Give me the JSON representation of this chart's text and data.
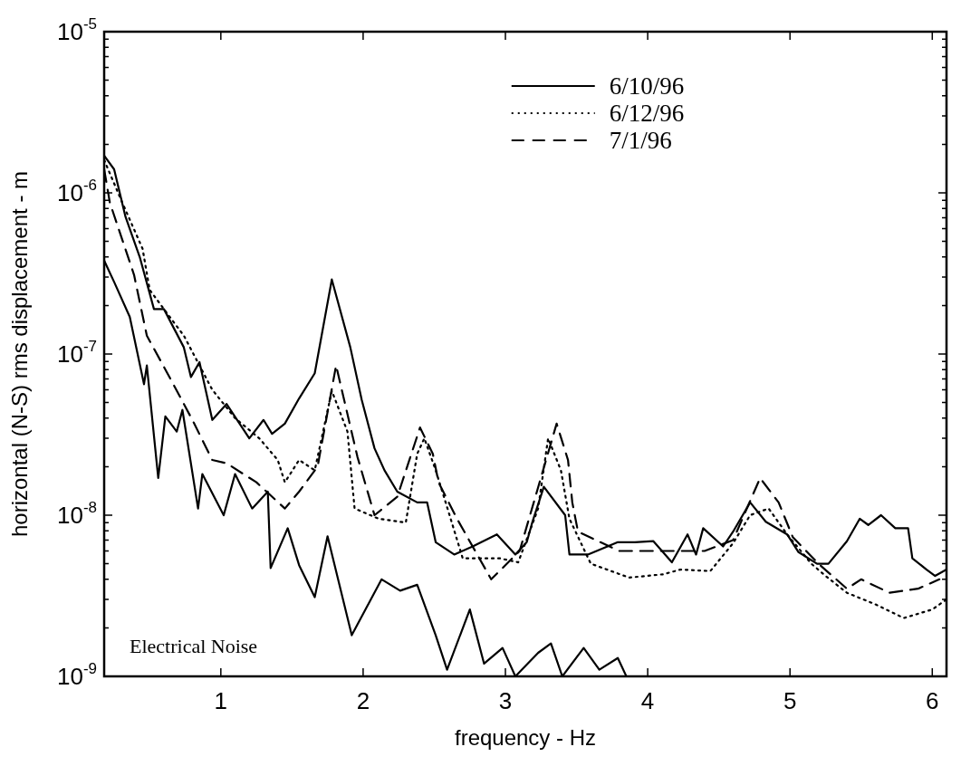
{
  "chart_data": {
    "type": "line",
    "xlabel": "frequency - Hz",
    "ylabel": "horizontal (N-S) rms displacement - m",
    "log": "y",
    "legend": "top",
    "xlim": [
      0.18,
      6.1
    ],
    "ylim": [
      1e-09,
      1e-05
    ],
    "xticks": [
      1,
      2,
      3,
      4,
      5,
      6
    ],
    "yticks": [
      {
        "value": 1e-09,
        "label": "10$^{-9}$"
      },
      {
        "value": 2e-09,
        "label": null
      },
      {
        "value": 3e-09,
        "label": null
      },
      {
        "value": 4e-09,
        "label": null
      },
      {
        "value": 5e-09,
        "label": null
      },
      {
        "value": 6e-09,
        "label": null
      },
      {
        "value": 7e-09,
        "label": null
      },
      {
        "value": 8e-09,
        "label": null
      },
      {
        "value": 9e-09,
        "label": null
      },
      {
        "value": 1e-08,
        "label": "10$^{-8}$"
      },
      {
        "value": 2e-08,
        "label": null
      },
      {
        "value": 3e-08,
        "label": null
      },
      {
        "value": 4e-08,
        "label": null
      },
      {
        "value": 5e-08,
        "label": null
      },
      {
        "value": 6e-08,
        "label": null
      },
      {
        "value": 7e-08,
        "label": null
      },
      {
        "value": 8e-08,
        "label": null
      },
      {
        "value": 9e-08,
        "label": null
      },
      {
        "value": 1e-07,
        "label": "10$^{-7}$"
      },
      {
        "value": 2e-07,
        "label": null
      },
      {
        "value": 3e-07,
        "label": null
      },
      {
        "value": 4e-07,
        "label": null
      },
      {
        "value": 5e-07,
        "label": null
      },
      {
        "value": 6e-07,
        "label": null
      },
      {
        "value": 7e-07,
        "label": null
      },
      {
        "value": 8e-07,
        "label": null
      },
      {
        "value": 9e-07,
        "label": null
      },
      {
        "value": 1e-06,
        "label": "10$^{-6}$"
      },
      {
        "value": 2e-06,
        "label": null
      },
      {
        "value": 3e-06,
        "label": null
      },
      {
        "value": 4e-06,
        "label": null
      },
      {
        "value": 5e-06,
        "label": null
      },
      {
        "value": 6e-06,
        "label": null
      },
      {
        "value": 7e-06,
        "label": null
      },
      {
        "value": 8e-06,
        "label": null
      },
      {
        "value": 9e-06,
        "label": null
      },
      {
        "value": 1e-05,
        "label": "10$^{-5}$"
      }
    ],
    "annotations": [
      "Electrical Noise"
    ],
    "series": [
      {
        "name": "6/10/96",
        "color": "#000000",
        "line_style": "solid",
        "x": [
          0.18,
          0.25,
          0.33,
          0.43,
          0.53,
          0.6,
          0.74,
          0.79,
          0.85,
          0.94,
          1.04,
          1.2,
          1.3,
          1.36,
          1.45,
          1.55,
          1.66,
          1.78,
          1.91,
          1.99,
          2.08,
          2.15,
          2.24,
          2.38,
          2.45,
          2.51,
          2.64,
          2.77,
          2.94,
          3.07,
          3.15,
          3.19,
          3.27,
          3.42,
          3.45,
          3.58,
          3.79,
          3.91,
          4.04,
          4.17,
          4.28,
          4.34,
          4.39,
          4.53,
          4.6,
          4.72,
          4.83,
          4.98,
          5.06,
          5.19,
          5.27,
          5.4,
          5.49,
          5.55,
          5.64,
          5.74,
          5.83,
          5.86,
          5.96,
          6.02,
          6.1
        ],
        "values": [
          1.7e-06,
          1.4e-06,
          7.1e-07,
          4e-07,
          1.9e-07,
          1.9e-07,
          1.1e-07,
          7.2e-08,
          8.9e-08,
          3.9e-08,
          4.9e-08,
          3e-08,
          3.9e-08,
          3.2e-08,
          3.7e-08,
          5.3e-08,
          7.6e-08,
          2.9e-07,
          1.1e-07,
          5.2e-08,
          2.6e-08,
          1.9e-08,
          1.4e-08,
          1.2e-08,
          1.2e-08,
          6.8e-09,
          5.7e-09,
          6.4e-09,
          7.6e-09,
          5.7e-09,
          6.8e-09,
          9.1e-09,
          1.5e-08,
          1e-08,
          5.7e-09,
          5.7e-09,
          6.8e-09,
          6.8e-09,
          6.9e-09,
          5.1e-09,
          7.6e-09,
          5.7e-09,
          8.3e-09,
          6.4e-09,
          7.9e-09,
          1.2e-08,
          9.1e-09,
          7.6e-09,
          5.9e-09,
          5e-09,
          5e-09,
          6.9e-09,
          9.5e-09,
          8.7e-09,
          1e-08,
          8.3e-09,
          8.3e-09,
          5.4e-09,
          4.6e-09,
          4.2e-09,
          4.6e-09
        ]
      },
      {
        "name": "6/12/96",
        "color": "#000000",
        "line_style": "dotted",
        "x": [
          0.18,
          0.3,
          0.45,
          0.5,
          0.6,
          0.74,
          0.94,
          1.1,
          1.27,
          1.4,
          1.45,
          1.55,
          1.66,
          1.78,
          1.89,
          1.94,
          2.11,
          2.3,
          2.38,
          2.43,
          2.51,
          2.58,
          2.7,
          2.83,
          2.96,
          3.09,
          3.23,
          3.3,
          3.39,
          3.45,
          3.6,
          3.87,
          4.11,
          4.23,
          4.44,
          4.6,
          4.72,
          4.85,
          4.98,
          5.15,
          5.25,
          5.4,
          5.6,
          5.8,
          6.0,
          6.1
        ],
        "values": [
          1.6e-06,
          9e-07,
          4.5e-07,
          2.5e-07,
          1.9e-07,
          1.3e-07,
          6e-08,
          4e-08,
          3e-08,
          2.2e-08,
          1.6e-08,
          2.2e-08,
          1.9e-08,
          5.9e-08,
          3.3e-08,
          1.1e-08,
          9.5e-09,
          9e-09,
          2.4e-08,
          3e-08,
          1.9e-08,
          1.2e-08,
          5.4e-09,
          5.4e-09,
          5.4e-09,
          5.1e-09,
          1.1e-08,
          3e-08,
          1.9e-08,
          9.5e-09,
          5e-09,
          4.1e-09,
          4.3e-09,
          4.6e-09,
          4.5e-09,
          6.7e-09,
          1e-08,
          1.1e-08,
          7.6e-09,
          5e-09,
          4.2e-09,
          3.3e-09,
          2.8e-09,
          2.3e-09,
          2.6e-09,
          3e-09
        ]
      },
      {
        "name": "7/1/96",
        "color": "#000000",
        "line_style": "dashed",
        "x": [
          0.18,
          0.22,
          0.39,
          0.48,
          0.57,
          0.65,
          0.8,
          0.94,
          1.04,
          1.25,
          1.45,
          1.55,
          1.68,
          1.81,
          1.96,
          2.08,
          2.24,
          2.4,
          2.49,
          2.53,
          2.66,
          2.9,
          3.1,
          3.36,
          3.44,
          3.47,
          3.51,
          3.8,
          4.1,
          4.4,
          4.6,
          4.79,
          4.92,
          5.02,
          5.2,
          5.4,
          5.5,
          5.7,
          5.9,
          6.05
        ],
        "values": [
          1.4e-06,
          8.7e-07,
          3.1e-07,
          1.3e-07,
          9.3e-08,
          6.9e-08,
          3.9e-08,
          2.2e-08,
          2.1e-08,
          1.6e-08,
          1.1e-08,
          1.4e-08,
          2e-08,
          8.5e-08,
          2.3e-08,
          1e-08,
          1.3e-08,
          3.5e-08,
          2.4e-08,
          1.6e-08,
          9.5e-09,
          4e-09,
          6e-09,
          3.7e-08,
          2.2e-08,
          1.2e-08,
          7.9e-09,
          6e-09,
          6e-09,
          6e-09,
          7e-09,
          1.7e-08,
          1.2e-08,
          7.3e-09,
          5e-09,
          3.5e-09,
          4e-09,
          3.3e-09,
          3.5e-09,
          4e-09
        ]
      },
      {
        "color": "#000000",
        "line_style": "solid",
        "x": [
          0.18,
          0.25,
          0.36,
          0.46,
          0.48,
          0.56,
          0.61,
          0.69,
          0.73,
          0.84,
          0.87,
          1.02,
          1.1,
          1.22,
          1.33,
          1.35,
          1.47,
          1.55,
          1.66,
          1.75,
          1.92,
          2.13,
          2.26,
          2.38,
          2.51,
          2.59,
          2.75,
          2.85,
          2.98,
          3.07,
          3.23,
          3.32,
          3.4,
          3.55,
          3.66,
          3.79,
          3.85
        ],
        "values": [
          3.8e-07,
          2.8e-07,
          1.7e-07,
          6.5e-08,
          8.5e-08,
          1.7e-08,
          4.1e-08,
          3.3e-08,
          4.5e-08,
          1.1e-08,
          1.8e-08,
          1e-08,
          1.8e-08,
          1.1e-08,
          1.4e-08,
          4.7e-09,
          8.3e-09,
          4.9e-09,
          3.1e-09,
          7.4e-09,
          1.8e-09,
          4e-09,
          3.4e-09,
          3.7e-09,
          1.8e-09,
          1.1e-09,
          2.6e-09,
          1.2e-09,
          1.5e-09,
          1e-09,
          1.4e-09,
          1.6e-09,
          1e-09,
          1.5e-09,
          1.1e-09,
          1.3e-09,
          1e-09
        ]
      }
    ]
  }
}
